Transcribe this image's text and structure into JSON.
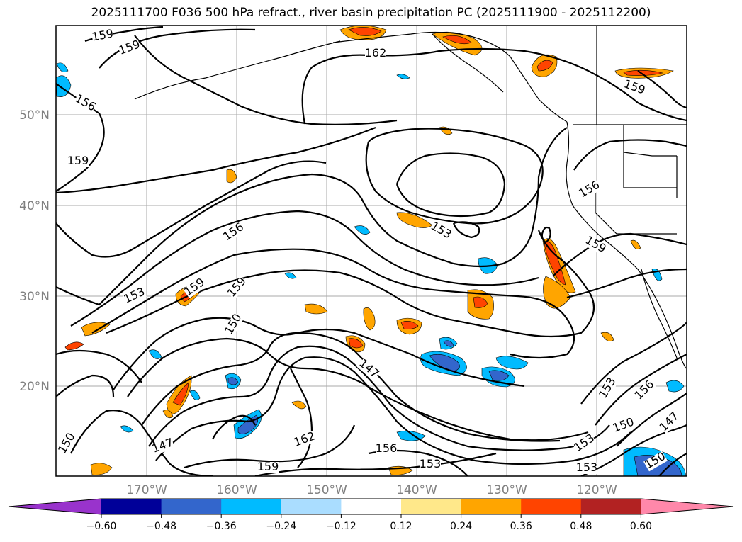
{
  "title": "2025111700 F036 500 hPa refract., river basin precipitation PC (2025111900 - 2025112200)",
  "map": {
    "lat_labels": [
      "50°N",
      "40°N",
      "30°N",
      "20°N"
    ],
    "lon_labels": [
      "170°W",
      "160°W",
      "150°W",
      "140°W",
      "130°W",
      "120°W"
    ],
    "contour_labels": [
      "159",
      "159",
      "162",
      "156",
      "159",
      "159",
      "156",
      "153",
      "159",
      "156",
      "159",
      "153",
      "150",
      "147",
      "159",
      "156",
      "150",
      "147",
      "162",
      "156",
      "153",
      "159",
      "153",
      "150",
      "147",
      "153",
      "153",
      "150"
    ]
  },
  "colorbar": {
    "ticks": [
      "−0.60",
      "−0.48",
      "−0.36",
      "−0.24",
      "−0.12",
      "0.12",
      "0.24",
      "0.36",
      "0.48",
      "0.60"
    ],
    "colors": [
      "#9933cc",
      "#000099",
      "#3366cc",
      "#00bbff",
      "#aaddff",
      "#ffffff",
      "#ffe88a",
      "#ffa500",
      "#ff4400",
      "#b22222",
      "#ff88aa"
    ]
  }
}
